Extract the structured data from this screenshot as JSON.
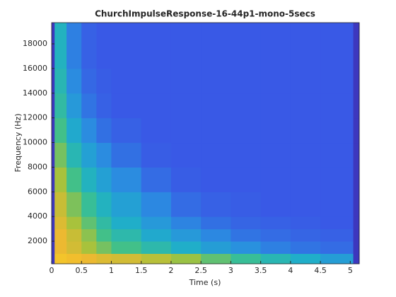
{
  "chart_data": {
    "type": "spectrogram",
    "title": "ChurchImpulseResponse-16-44p1-mono-5secs",
    "xlabel": "Time (s)",
    "ylabel": "Frequency (Hz)",
    "xlim": [
      0,
      5.15
    ],
    "ylim": [
      170,
      19720
    ],
    "xticks": [
      0,
      0.5,
      1,
      1.5,
      2,
      2.5,
      3,
      3.5,
      4,
      4.5,
      5
    ],
    "yticks": [
      2000,
      4000,
      6000,
      8000,
      10000,
      12000,
      14000,
      16000,
      18000
    ],
    "colormap": [
      "#3e26a8",
      "#3a56e6",
      "#2a8ee0",
      "#1fb0c8",
      "#3cc08e",
      "#a5c23c",
      "#f0b830",
      "#f9e020"
    ],
    "time_bins": [
      0,
      0.05,
      0.25,
      0.5,
      0.75,
      1,
      1.5,
      2,
      2.5,
      3,
      3.5,
      4,
      4.5,
      5.05,
      5.15
    ],
    "freq_bins": [
      170,
      1000,
      2000,
      3000,
      4000,
      6000,
      8000,
      10000,
      12000,
      14000,
      16000,
      19720
    ],
    "z": [
      [
        0.05,
        0.9,
        0.88,
        0.85,
        0.82,
        0.8,
        0.75,
        0.7,
        0.62,
        0.55,
        0.48,
        0.42,
        0.35,
        0.05
      ],
      [
        0.05,
        0.85,
        0.8,
        0.72,
        0.65,
        0.58,
        0.5,
        0.42,
        0.35,
        0.3,
        0.25,
        0.22,
        0.2,
        0.05
      ],
      [
        0.05,
        0.85,
        0.78,
        0.68,
        0.58,
        0.5,
        0.4,
        0.33,
        0.27,
        0.22,
        0.2,
        0.18,
        0.17,
        0.05
      ],
      [
        0.05,
        0.82,
        0.72,
        0.62,
        0.52,
        0.42,
        0.33,
        0.26,
        0.21,
        0.18,
        0.17,
        0.16,
        0.15,
        0.05
      ],
      [
        0.05,
        0.78,
        0.66,
        0.55,
        0.45,
        0.36,
        0.27,
        0.2,
        0.17,
        0.16,
        0.15,
        0.15,
        0.15,
        0.05
      ],
      [
        0.05,
        0.72,
        0.58,
        0.45,
        0.36,
        0.28,
        0.2,
        0.16,
        0.15,
        0.15,
        0.15,
        0.15,
        0.15,
        0.05
      ],
      [
        0.05,
        0.65,
        0.48,
        0.36,
        0.28,
        0.21,
        0.16,
        0.15,
        0.15,
        0.15,
        0.15,
        0.15,
        0.15,
        0.05
      ],
      [
        0.05,
        0.58,
        0.4,
        0.28,
        0.21,
        0.17,
        0.15,
        0.15,
        0.15,
        0.15,
        0.15,
        0.15,
        0.15,
        0.05
      ],
      [
        0.05,
        0.52,
        0.33,
        0.22,
        0.17,
        0.15,
        0.15,
        0.15,
        0.15,
        0.15,
        0.15,
        0.15,
        0.15,
        0.05
      ],
      [
        0.05,
        0.48,
        0.28,
        0.19,
        0.16,
        0.15,
        0.15,
        0.15,
        0.15,
        0.15,
        0.15,
        0.15,
        0.15,
        0.05
      ],
      [
        0.05,
        0.45,
        0.25,
        0.17,
        0.15,
        0.15,
        0.15,
        0.15,
        0.15,
        0.15,
        0.15,
        0.15,
        0.15,
        0.05
      ]
    ]
  }
}
